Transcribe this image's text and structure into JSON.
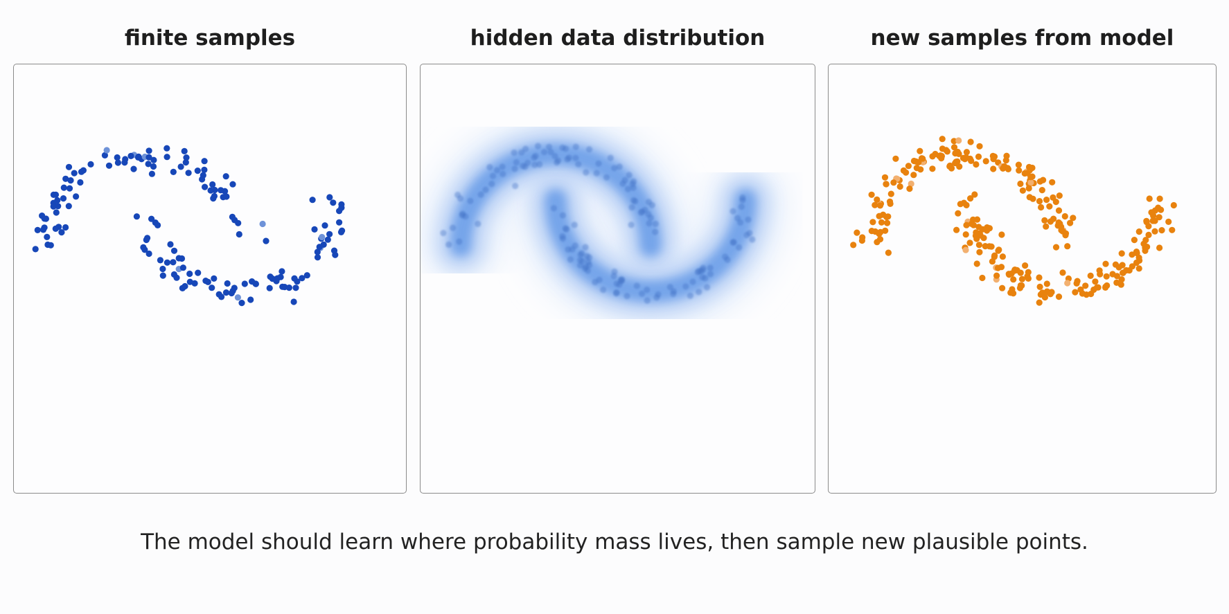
{
  "panels": [
    {
      "title": "finite samples",
      "kind": "samples",
      "color": "#1747b8"
    },
    {
      "title": "hidden data distribution",
      "kind": "density",
      "color": "#3a7fe0"
    },
    {
      "title": "new samples from model",
      "kind": "generated",
      "color": "#e8820e"
    }
  ],
  "caption": "The model should learn where probability mass lives, then sample new plausible points."
}
